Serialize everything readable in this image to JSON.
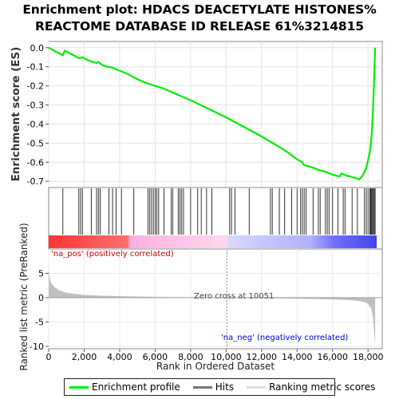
{
  "title_line1": "Enrichment plot: HDACS DEACETYLATE HISTONES%",
  "title_line2": "REACTOME DATABASE ID RELEASE 61%3214815",
  "colors": {
    "es_line": "#00ee00",
    "hits": "#000000",
    "metric_fill": "#c0c0c0",
    "pos_red": "#ff3333",
    "neg_blue": "#6666ff",
    "na_pos_text": "#d00000",
    "na_neg_text": "#0000c8",
    "zero_cross_line": "#999999"
  },
  "chart_data": [
    {
      "type": "line",
      "name": "enrichment_score",
      "ylabel": "Enrichment score (ES)",
      "ylim": [
        -0.72,
        0.02
      ],
      "yticks": [
        0.0,
        -0.1,
        -0.2,
        -0.3,
        -0.4,
        -0.5,
        -0.6,
        -0.7
      ],
      "ytick_labels": [
        "0.0",
        "-0.1",
        "-0.2",
        "-0.3",
        "-0.4",
        "-0.5",
        "-0.6",
        "-0.7"
      ],
      "xlim": [
        0,
        18800
      ],
      "grid": true,
      "x": [
        0,
        400,
        800,
        900,
        1200,
        1700,
        1900,
        2200,
        2500,
        2700,
        2800,
        3000,
        3300,
        3600,
        4000,
        4500,
        5000,
        5500,
        6000,
        6500,
        7000,
        8000,
        9000,
        10000,
        11000,
        12000,
        13000,
        13500,
        14000,
        14300,
        14400,
        14800,
        15200,
        15600,
        16000,
        16400,
        16500,
        16800,
        17200,
        17500,
        17700,
        17900,
        18000,
        18100,
        18200,
        18250,
        18300,
        18350,
        18400
      ],
      "y": [
        0.0,
        -0.02,
        -0.04,
        -0.015,
        -0.03,
        -0.055,
        -0.05,
        -0.065,
        -0.075,
        -0.08,
        -0.075,
        -0.09,
        -0.1,
        -0.105,
        -0.12,
        -0.14,
        -0.165,
        -0.185,
        -0.2,
        -0.215,
        -0.235,
        -0.275,
        -0.32,
        -0.365,
        -0.415,
        -0.465,
        -0.52,
        -0.55,
        -0.585,
        -0.6,
        -0.615,
        -0.625,
        -0.64,
        -0.65,
        -0.665,
        -0.675,
        -0.66,
        -0.67,
        -0.68,
        -0.69,
        -0.67,
        -0.63,
        -0.59,
        -0.55,
        -0.46,
        -0.38,
        -0.27,
        -0.14,
        0.0
      ]
    },
    {
      "type": "hits",
      "name": "hits",
      "x": [
        800,
        1700,
        1800,
        1900,
        2400,
        2700,
        2800,
        2900,
        3400,
        3600,
        3800,
        4100,
        4800,
        5600,
        5700,
        5800,
        5900,
        6000,
        6100,
        6200,
        6500,
        6900,
        7000,
        7300,
        7400,
        7500,
        7600,
        8000,
        8400,
        8600,
        8900,
        9200,
        10200,
        10300,
        10500,
        11300,
        12500,
        12600,
        13000,
        13300,
        13700,
        14000,
        14200,
        14300,
        14400,
        14500,
        14900,
        15200,
        15300,
        15600,
        15700,
        15800,
        16000,
        16300,
        16600,
        16700,
        17100,
        17400,
        17800,
        17900,
        18000,
        18100,
        18150,
        18200,
        18250,
        18300,
        18350,
        18400
      ]
    },
    {
      "type": "area",
      "name": "ranked_list_metric",
      "xlabel": "Rank in Ordered Dataset",
      "ylabel": "Ranked list metric (PreRanked)",
      "xlim": [
        0,
        18800
      ],
      "ylim": [
        -10.5,
        10
      ],
      "xticks": [
        0,
        2000,
        4000,
        6000,
        8000,
        10000,
        12000,
        14000,
        16000,
        18000
      ],
      "xtick_labels": [
        "0",
        "2,000",
        "4,000",
        "6,000",
        "8,000",
        "10,000",
        "12,000",
        "14,000",
        "16,000",
        "18,000"
      ],
      "yticks": [
        5,
        0,
        -5,
        -10
      ],
      "ytick_labels": [
        "5",
        "0",
        "-5",
        "-10"
      ],
      "x": [
        0,
        50,
        150,
        300,
        600,
        1000,
        1500,
        2000,
        3000,
        4000,
        6000,
        8000,
        10051,
        12000,
        14000,
        16000,
        17000,
        17500,
        17800,
        18000,
        18100,
        18200,
        18250,
        18300,
        18350,
        18400
      ],
      "y": [
        6.0,
        4.0,
        3.0,
        2.2,
        1.5,
        1.0,
        0.75,
        0.55,
        0.4,
        0.3,
        0.15,
        0.07,
        0.0,
        -0.1,
        -0.2,
        -0.35,
        -0.5,
        -0.7,
        -0.9,
        -1.3,
        -1.8,
        -2.5,
        -3.5,
        -5.0,
        -7.5,
        -9.6
      ]
    }
  ],
  "annotations": {
    "na_pos": "'na_pos' (positively correlated)",
    "na_neg": "'na_neg' (negatively correlated)",
    "zero_cross": "Zero cross at 10051",
    "zero_cross_rank": 10051
  },
  "legend": {
    "items": [
      "Enrichment profile",
      "Hits",
      "Ranking metric scores"
    ]
  }
}
